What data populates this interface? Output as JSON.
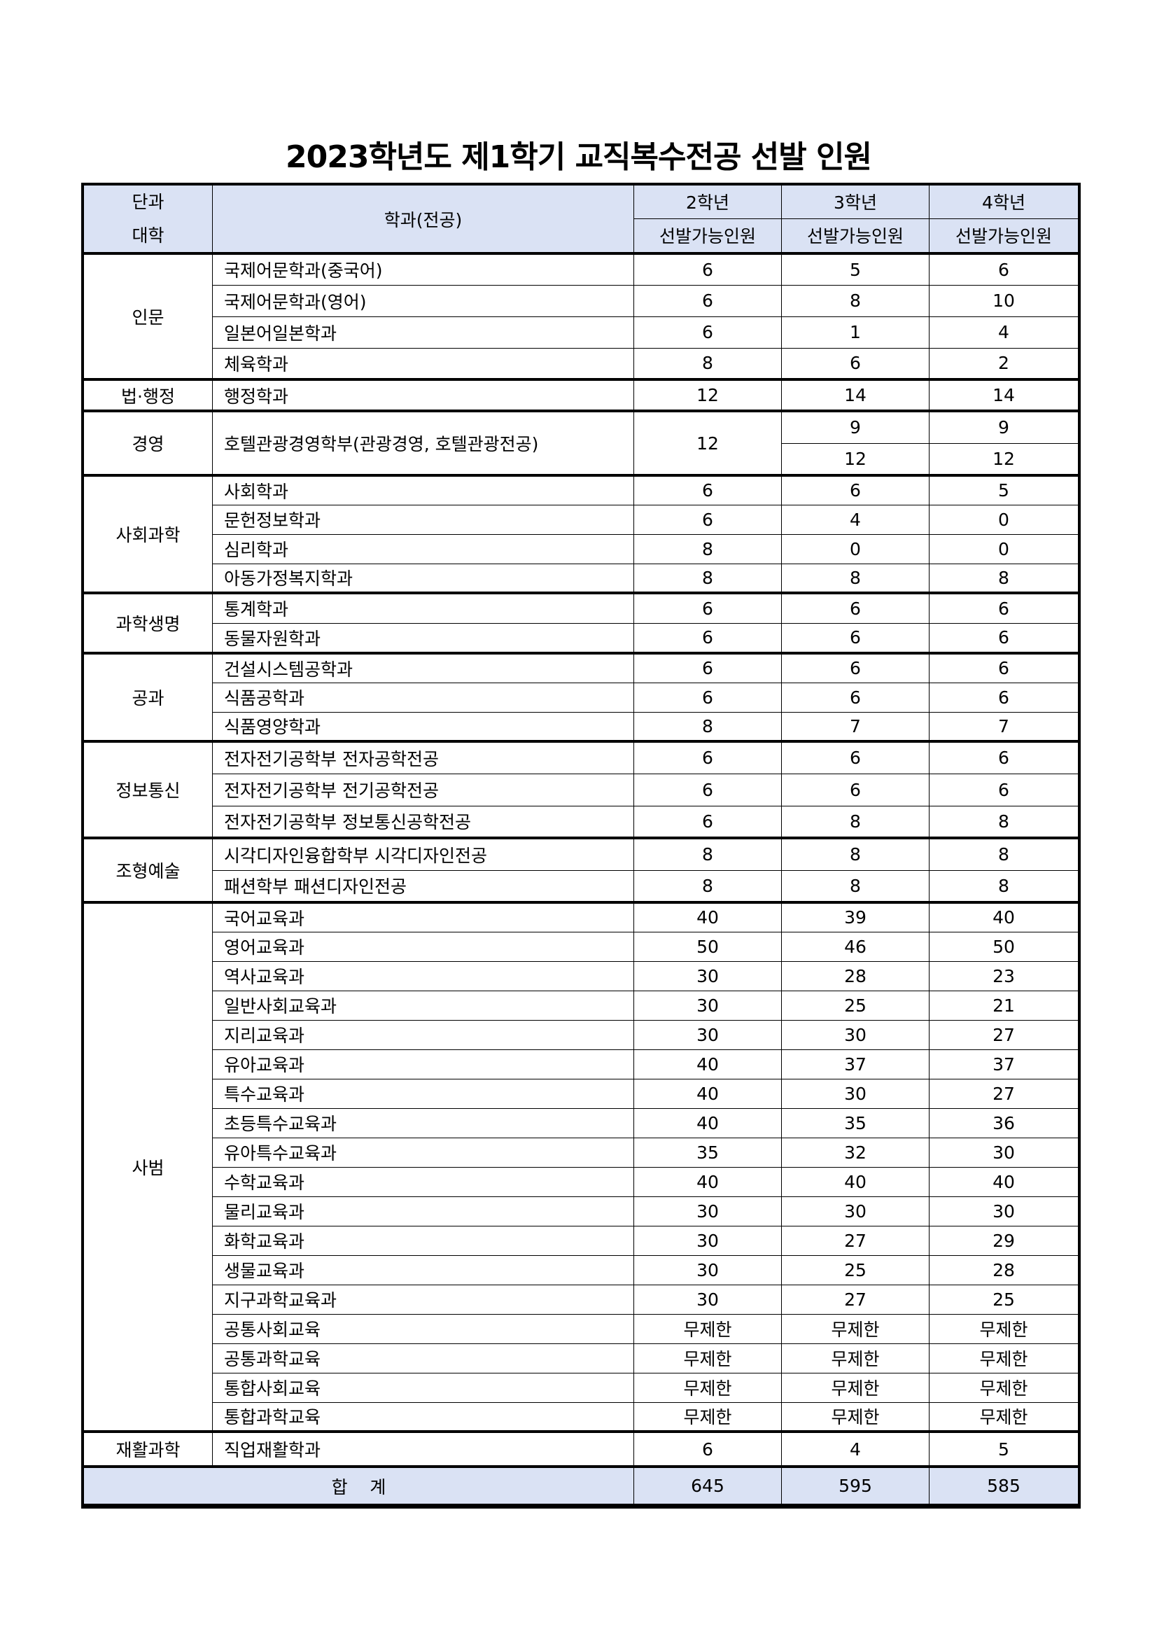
{
  "title": "2023학년도 제1학기 교직복수전공 선발 인원",
  "header": {
    "college": "단과\n대학",
    "college_lines": [
      "단과",
      "대학"
    ],
    "dept": "학과(전공)",
    "years": [
      "2학년",
      "3학년",
      "4학년"
    ],
    "sub": "선발가능인원"
  },
  "groups": [
    {
      "college": "인문",
      "rows": [
        {
          "dept": "국제어문학과(중국어)",
          "v": [
            "6",
            "5",
            "6"
          ]
        },
        {
          "dept": "국제어문학과(영어)",
          "v": [
            "6",
            "8",
            "10"
          ]
        },
        {
          "dept": "일본어일본학과",
          "v": [
            "6",
            "1",
            "4"
          ]
        },
        {
          "dept": "체육학과",
          "v": [
            "8",
            "6",
            "2"
          ]
        }
      ]
    },
    {
      "college": "법·행정",
      "rows": [
        {
          "dept": "행정학과",
          "v": [
            "12",
            "14",
            "14"
          ]
        }
      ]
    },
    {
      "college": "경영",
      "rows": [
        {
          "dept": "호텔관광경영학부(관광경영, 호텔관광전공)",
          "v": [
            "12",
            "9",
            "9"
          ],
          "v_second": [
            "12",
            "12"
          ]
        }
      ]
    },
    {
      "college": "사회과학",
      "rows": [
        {
          "dept": "사회학과",
          "v": [
            "6",
            "6",
            "5"
          ]
        },
        {
          "dept": "문헌정보학과",
          "v": [
            "6",
            "4",
            "0"
          ]
        },
        {
          "dept": "심리학과",
          "v": [
            "8",
            "0",
            "0"
          ]
        },
        {
          "dept": "아동가정복지학과",
          "v": [
            "8",
            "8",
            "8"
          ]
        }
      ]
    },
    {
      "college": "과학생명",
      "rows": [
        {
          "dept": "통계학과",
          "v": [
            "6",
            "6",
            "6"
          ]
        },
        {
          "dept": "동물자원학과",
          "v": [
            "6",
            "6",
            "6"
          ]
        }
      ]
    },
    {
      "college": "공과",
      "rows": [
        {
          "dept": "건설시스템공학과",
          "v": [
            "6",
            "6",
            "6"
          ]
        },
        {
          "dept": "식품공학과",
          "v": [
            "6",
            "6",
            "6"
          ]
        },
        {
          "dept": "식품영양학과",
          "v": [
            "8",
            "7",
            "7"
          ]
        }
      ]
    },
    {
      "college": "정보통신",
      "rows": [
        {
          "dept": "전자전기공학부 전자공학전공",
          "v": [
            "6",
            "6",
            "6"
          ]
        },
        {
          "dept": "전자전기공학부 전기공학전공",
          "v": [
            "6",
            "6",
            "6"
          ]
        },
        {
          "dept": "전자전기공학부 정보통신공학전공",
          "v": [
            "6",
            "8",
            "8"
          ]
        }
      ]
    },
    {
      "college": "조형예술",
      "rows": [
        {
          "dept": "시각디자인융합학부 시각디자인전공",
          "v": [
            "8",
            "8",
            "8"
          ]
        },
        {
          "dept": "패션학부 패션디자인전공",
          "v": [
            "8",
            "8",
            "8"
          ]
        }
      ]
    },
    {
      "college": "사범",
      "rows": [
        {
          "dept": "국어교육과",
          "v": [
            "40",
            "39",
            "40"
          ]
        },
        {
          "dept": "영어교육과",
          "v": [
            "50",
            "46",
            "50"
          ]
        },
        {
          "dept": "역사교육과",
          "v": [
            "30",
            "28",
            "23"
          ]
        },
        {
          "dept": "일반사회교육과",
          "v": [
            "30",
            "25",
            "21"
          ]
        },
        {
          "dept": "지리교육과",
          "v": [
            "30",
            "30",
            "27"
          ]
        },
        {
          "dept": "유아교육과",
          "v": [
            "40",
            "37",
            "37"
          ]
        },
        {
          "dept": "특수교육과",
          "v": [
            "40",
            "30",
            "27"
          ]
        },
        {
          "dept": "초등특수교육과",
          "v": [
            "40",
            "35",
            "36"
          ]
        },
        {
          "dept": "유아특수교육과",
          "v": [
            "35",
            "32",
            "30"
          ]
        },
        {
          "dept": "수학교육과",
          "v": [
            "40",
            "40",
            "40"
          ]
        },
        {
          "dept": "물리교육과",
          "v": [
            "30",
            "30",
            "30"
          ]
        },
        {
          "dept": "화학교육과",
          "v": [
            "30",
            "27",
            "29"
          ]
        },
        {
          "dept": "생물교육과",
          "v": [
            "30",
            "25",
            "28"
          ]
        },
        {
          "dept": "지구과학교육과",
          "v": [
            "30",
            "27",
            "25"
          ]
        },
        {
          "dept": "공통사회교육",
          "v": [
            "무제한",
            "무제한",
            "무제한"
          ]
        },
        {
          "dept": "공통과학교육",
          "v": [
            "무제한",
            "무제한",
            "무제한"
          ]
        },
        {
          "dept": "통합사회교육",
          "v": [
            "무제한",
            "무제한",
            "무제한"
          ]
        },
        {
          "dept": "통합과학교육",
          "v": [
            "무제한",
            "무제한",
            "무제한"
          ]
        }
      ]
    },
    {
      "college": "재활과학",
      "rows": [
        {
          "dept": "직업재활학과",
          "v": [
            "6",
            "4",
            "5"
          ]
        }
      ]
    }
  ],
  "total": {
    "label": "합    계",
    "v": [
      "645",
      "595",
      "585"
    ]
  },
  "colors": {
    "header_bg": "#dae2f4",
    "border": "#000000"
  }
}
